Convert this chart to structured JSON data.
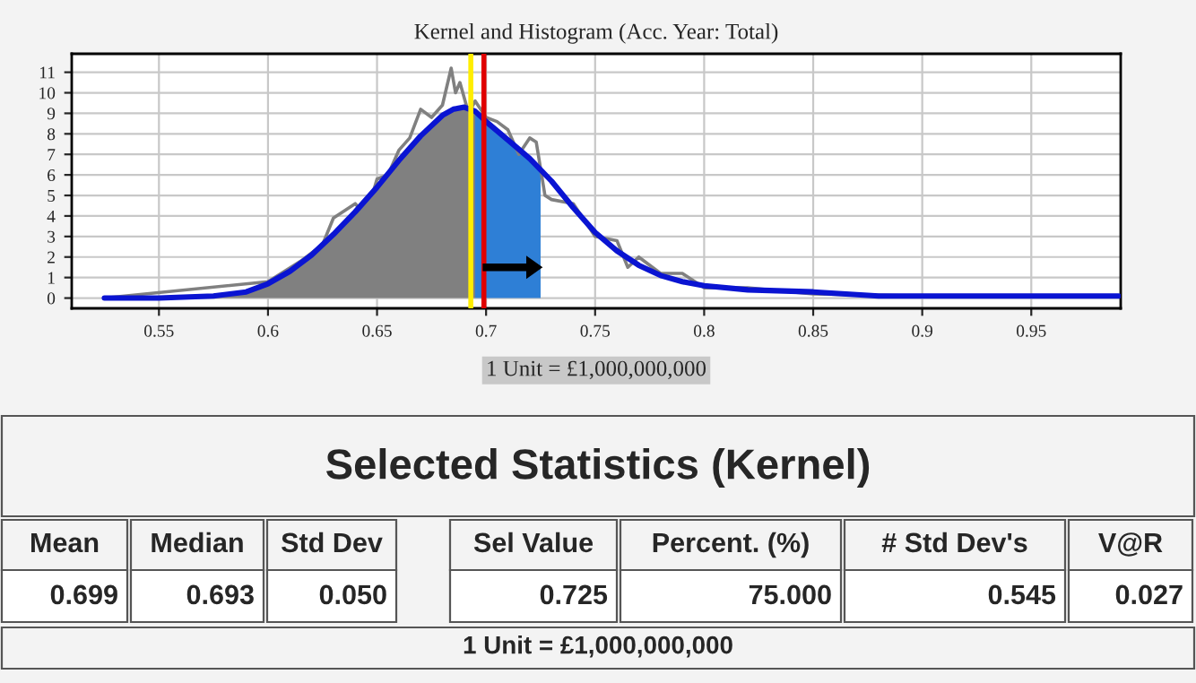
{
  "chart_data": {
    "type": "line",
    "title": "Kernel and Histogram (Acc. Year: Total)",
    "xlabel": "1 Unit = £1,000,000,000",
    "xlim": [
      0.51,
      0.991
    ],
    "xticks": [
      0.55,
      0.6,
      0.65,
      0.7,
      0.75,
      0.8,
      0.85,
      0.9,
      0.95
    ],
    "ylim": [
      -0.5,
      11.9
    ],
    "yticks": [
      0,
      1,
      2,
      3,
      4,
      5,
      6,
      7,
      8,
      9,
      10,
      11
    ],
    "grid": true,
    "series": [
      {
        "type": "area",
        "color": "#808080",
        "x": [
          0.525,
          0.55,
          0.575,
          0.59,
          0.6,
          0.61,
          0.62,
          0.63,
          0.64,
          0.65,
          0.66,
          0.67,
          0.68,
          0.685,
          0.69,
          0.695
        ],
        "values": [
          0,
          0,
          0.1,
          0.3,
          0.7,
          1.3,
          2.1,
          3.1,
          4.2,
          5.4,
          6.7,
          7.9,
          8.9,
          9.2,
          9.3,
          9.1
        ]
      },
      {
        "type": "area",
        "color": "#2e7fd6",
        "x": [
          0.695,
          0.7,
          0.71,
          0.72,
          0.725
        ],
        "values": [
          9.1,
          8.6,
          7.7,
          6.8,
          6.3
        ]
      },
      {
        "type": "line",
        "color": "#808080",
        "x": [
          0.525,
          0.6,
          0.615,
          0.625,
          0.63,
          0.64,
          0.645,
          0.65,
          0.655,
          0.66,
          0.665,
          0.67,
          0.675,
          0.68,
          0.684,
          0.686,
          0.688,
          0.692,
          0.695,
          0.7,
          0.705,
          0.71,
          0.715,
          0.72,
          0.723,
          0.727,
          0.73,
          0.74,
          0.75,
          0.76,
          0.765,
          0.77,
          0.78,
          0.79,
          0.8,
          0.82,
          0.85,
          0.9,
          0.99
        ],
        "values": [
          0,
          0.8,
          1.8,
          2.6,
          3.9,
          4.6,
          4.0,
          5.8,
          6.0,
          7.2,
          7.8,
          9.2,
          8.8,
          9.4,
          11.2,
          10.0,
          10.5,
          9.0,
          9.6,
          8.8,
          8.6,
          8.2,
          7.0,
          7.8,
          7.6,
          5.0,
          4.8,
          4.6,
          3.0,
          2.8,
          1.5,
          2.0,
          1.2,
          1.2,
          0.5,
          0.5,
          0.2,
          0.1,
          0.1
        ]
      },
      {
        "color": "#0a14d2",
        "x": [
          0.525,
          0.55,
          0.575,
          0.59,
          0.6,
          0.61,
          0.62,
          0.63,
          0.64,
          0.65,
          0.66,
          0.67,
          0.68,
          0.685,
          0.69,
          0.695,
          0.7,
          0.71,
          0.72,
          0.73,
          0.74,
          0.75,
          0.76,
          0.77,
          0.78,
          0.79,
          0.8,
          0.82,
          0.85,
          0.88,
          0.9,
          0.95,
          0.99
        ],
        "values": [
          0,
          0,
          0.1,
          0.3,
          0.7,
          1.3,
          2.1,
          3.1,
          4.2,
          5.4,
          6.7,
          7.9,
          8.9,
          9.2,
          9.3,
          9.1,
          8.6,
          7.7,
          6.8,
          5.7,
          4.4,
          3.2,
          2.3,
          1.6,
          1.1,
          0.8,
          0.6,
          0.4,
          0.3,
          0.1,
          0.1,
          0.1,
          0.1
        ]
      }
    ],
    "ref_lines": [
      {
        "axis": "x",
        "value": 0.693,
        "color": "#ffee00"
      },
      {
        "axis": "x",
        "value": 0.699,
        "color": "#e00000"
      }
    ],
    "annotations": [
      "Selected Statistics (Kernel)",
      "Mean",
      "Median",
      "Std Dev",
      "Sel Value",
      "Percent. (%)",
      "# Std Dev's",
      "V@R",
      "0.699",
      "0.693",
      "0.050",
      "0.725",
      "75.000",
      "0.545",
      "0.027",
      "1 Unit = £1,000,000,000"
    ]
  }
}
